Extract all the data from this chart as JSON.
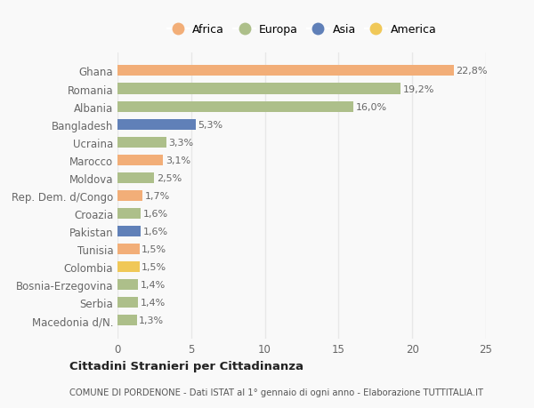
{
  "countries": [
    "Ghana",
    "Romania",
    "Albania",
    "Bangladesh",
    "Ucraina",
    "Marocco",
    "Moldova",
    "Rep. Dem. d/Congo",
    "Croazia",
    "Pakistan",
    "Tunisia",
    "Colombia",
    "Bosnia-Erzegovina",
    "Serbia",
    "Macedonia d/N."
  ],
  "values": [
    22.8,
    19.2,
    16.0,
    5.3,
    3.3,
    3.1,
    2.5,
    1.7,
    1.6,
    1.6,
    1.5,
    1.5,
    1.4,
    1.4,
    1.3
  ],
  "labels": [
    "22,8%",
    "19,2%",
    "16,0%",
    "5,3%",
    "3,3%",
    "3,1%",
    "2,5%",
    "1,7%",
    "1,6%",
    "1,6%",
    "1,5%",
    "1,5%",
    "1,4%",
    "1,4%",
    "1,3%"
  ],
  "continents": [
    "Africa",
    "Europa",
    "Europa",
    "Asia",
    "Europa",
    "Africa",
    "Europa",
    "Africa",
    "Europa",
    "Asia",
    "Africa",
    "America",
    "Europa",
    "Europa",
    "Europa"
  ],
  "colors": {
    "Africa": "#F2AE78",
    "Europa": "#ADBF8A",
    "Asia": "#6080B8",
    "America": "#F0C858"
  },
  "legend_order": [
    "Africa",
    "Europa",
    "Asia",
    "America"
  ],
  "xlim": [
    0,
    25
  ],
  "xticks": [
    0,
    5,
    10,
    15,
    20,
    25
  ],
  "title": "Cittadini Stranieri per Cittadinanza",
  "subtitle": "COMUNE DI PORDENONE - Dati ISTAT al 1° gennaio di ogni anno - Elaborazione TUTTITALIA.IT",
  "bg_color": "#f9f9f9",
  "grid_color": "#e8e8e8",
  "bar_height": 0.6
}
